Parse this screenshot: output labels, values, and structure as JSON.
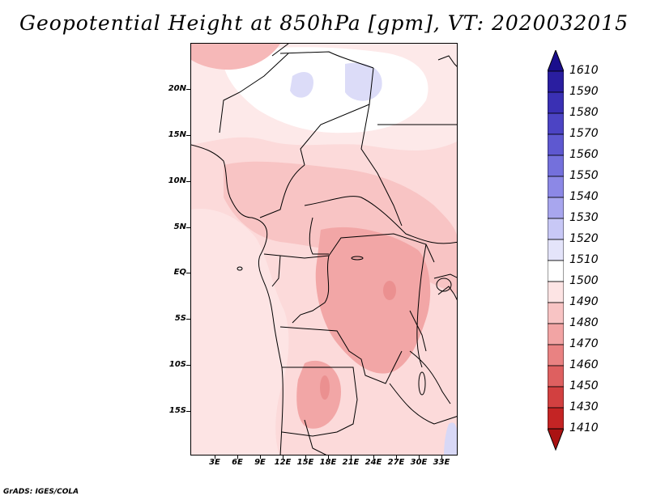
{
  "title": "Geopotential Height at 850hPa [gpm], VT: 2020032015",
  "footer": "GrADS: IGES/COLA",
  "map": {
    "variable": "Geopotential Height",
    "level": "850hPa",
    "units": "gpm",
    "valid_time": "2020032015",
    "region": "Central Africa",
    "lat_labels": [
      "20N",
      "15N",
      "10N",
      "5N",
      "EQ",
      "5S",
      "10S",
      "15S"
    ],
    "lon_labels": [
      "3E",
      "6E",
      "9E",
      "12E",
      "15E",
      "18E",
      "21E",
      "24E",
      "27E",
      "30E",
      "33E"
    ]
  },
  "colorbar": {
    "labels": [
      "1610",
      "1590",
      "1580",
      "1570",
      "1560",
      "1550",
      "1540",
      "1530",
      "1520",
      "1510",
      "1500",
      "1490",
      "1480",
      "1470",
      "1460",
      "1450",
      "1430",
      "1410"
    ],
    "colors": [
      "#1a0e8c",
      "#2a1ea0",
      "#3a30b4",
      "#4c44c4",
      "#5e58d0",
      "#7470dc",
      "#8c88e6",
      "#a8a6ee",
      "#c8c8f6",
      "#e4e4fa",
      "#ffffff",
      "#fde4e4",
      "#f8c4c4",
      "#f2a4a4",
      "#e98282",
      "#de6060",
      "#d24040",
      "#c42424",
      "#aa1212"
    ]
  }
}
